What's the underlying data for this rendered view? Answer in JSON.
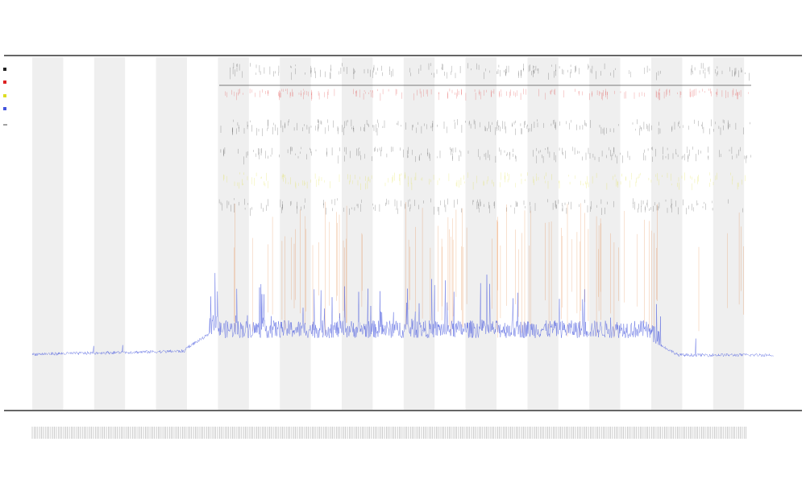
{
  "chart_data": {
    "type": "line",
    "title": "",
    "subtitle_lines": [
      "",
      ""
    ],
    "xlabel": "",
    "ylabel": "",
    "bands": 12,
    "series": [
      {
        "name": "",
        "color": "#4455dd",
        "kind": "trace"
      }
    ],
    "event_rows": [
      {
        "label": "",
        "color": "#222222"
      },
      {
        "label": "",
        "color": "#dd2222"
      },
      {
        "label": "",
        "color": "#222222"
      },
      {
        "label": "",
        "color": "#222222"
      },
      {
        "label": "",
        "color": "#dddd22"
      },
      {
        "label": "",
        "color": "#222222"
      }
    ],
    "legend": {
      "placement": "top-left",
      "entries": [
        {
          "label": "",
          "color": "#222222"
        },
        {
          "label": "",
          "color": "#dd2222"
        },
        {
          "label": "",
          "color": "#dddd22"
        },
        {
          "label": "",
          "color": "#4455dd"
        }
      ]
    },
    "grid": false
  }
}
